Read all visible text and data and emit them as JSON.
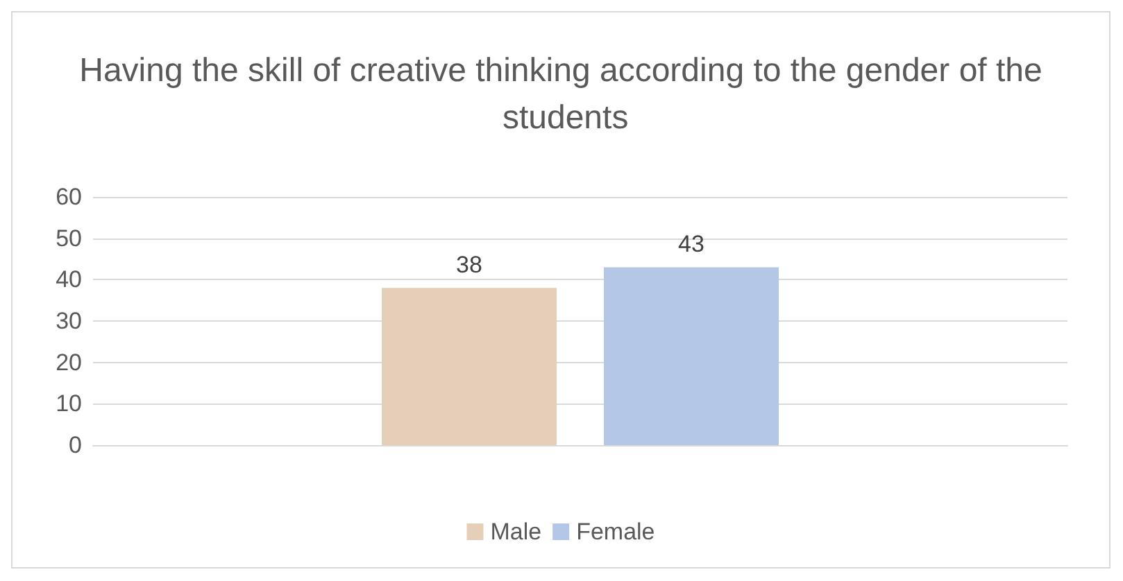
{
  "chart_data": {
    "type": "bar",
    "title": "Having the skill of creative thinking according to the gender of the students",
    "categories": [
      null
    ],
    "series": [
      {
        "name": "Male",
        "color": "#e6cfb8",
        "values": [
          38
        ]
      },
      {
        "name": "Female",
        "color": "#b4c7e7",
        "values": [
          43
        ]
      }
    ],
    "ylim": [
      0,
      60
    ],
    "yticks": [
      0,
      10,
      20,
      30,
      40,
      50,
      60
    ],
    "grid": "y",
    "legend": "bottom",
    "data_labels": true
  }
}
